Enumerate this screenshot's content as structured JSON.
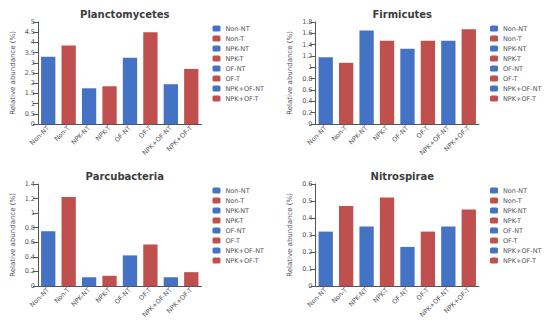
{
  "chart_data": [
    {
      "type": "bar",
      "title": "Planctomycetes",
      "ylabel": "Relative abundance (%)",
      "categories": [
        "Non-NT",
        "Non-T",
        "NPK-NT",
        "NPK-T",
        "OF-NT",
        "OF-T",
        "NPK+OF-NT",
        "NPK+OF-T"
      ],
      "values": [
        3.3,
        3.85,
        1.75,
        1.85,
        3.25,
        4.5,
        1.95,
        2.7
      ],
      "colors": [
        "#4472C4",
        "#C0504D",
        "#4472C4",
        "#C0504D",
        "#4472C4",
        "#C0504D",
        "#4472C4",
        "#C0504D"
      ],
      "ylim": [
        0,
        5
      ],
      "yticks": [
        0,
        0.5,
        1,
        1.5,
        2,
        2.5,
        3,
        3.5,
        4,
        4.5,
        5
      ],
      "grid": false,
      "legend": "right"
    },
    {
      "type": "bar",
      "title": "Firmicutes",
      "ylabel": "Relative abundance (%)",
      "categories": [
        "Non-NT",
        "Non-T",
        "NPK-NT",
        "NPK-T",
        "OF-NT",
        "OF-T",
        "NPK+OF-NT",
        "NPK+OF-T"
      ],
      "values": [
        1.18,
        1.08,
        1.65,
        1.47,
        1.33,
        1.47,
        1.47,
        1.67
      ],
      "colors": [
        "#4472C4",
        "#C0504D",
        "#4472C4",
        "#C0504D",
        "#4472C4",
        "#C0504D",
        "#4472C4",
        "#C0504D"
      ],
      "ylim": [
        0,
        1.8
      ],
      "yticks": [
        0,
        0.2,
        0.4,
        0.6,
        0.8,
        1,
        1.2,
        1.4,
        1.6,
        1.8
      ],
      "grid": false,
      "legend": "right"
    },
    {
      "type": "bar",
      "title": "Parcubacteria",
      "ylabel": "Relative abundance (%)",
      "categories": [
        "Non-NT",
        "Non-T",
        "NPK-NT",
        "NPK-T",
        "OF-NT",
        "OF-T",
        "NPK+OF-NT",
        "NPK+OF-T"
      ],
      "values": [
        0.75,
        1.22,
        0.12,
        0.14,
        0.42,
        0.57,
        0.12,
        0.19
      ],
      "colors": [
        "#4472C4",
        "#C0504D",
        "#4472C4",
        "#C0504D",
        "#4472C4",
        "#C0504D",
        "#4472C4",
        "#C0504D"
      ],
      "ylim": [
        0,
        1.4
      ],
      "yticks": [
        0,
        0.2,
        0.4,
        0.6,
        0.8,
        1,
        1.2,
        1.4
      ],
      "grid": false,
      "legend": "right"
    },
    {
      "type": "bar",
      "title": "Nitrospirae",
      "ylabel": "Relative abundance (%)",
      "categories": [
        "Non-NT",
        "Non-T",
        "NPK-NT",
        "NPK-T",
        "OF-NT",
        "OF-T",
        "NPK+OF-NT",
        "NPK+OF-T"
      ],
      "values": [
        0.32,
        0.47,
        0.35,
        0.52,
        0.23,
        0.32,
        0.35,
        0.45
      ],
      "colors": [
        "#4472C4",
        "#C0504D",
        "#4472C4",
        "#C0504D",
        "#4472C4",
        "#C0504D",
        "#4472C4",
        "#C0504D"
      ],
      "ylim": [
        0,
        0.6
      ],
      "yticks": [
        0,
        0.1,
        0.2,
        0.3,
        0.4,
        0.5,
        0.6
      ],
      "grid": false,
      "legend": "right"
    }
  ]
}
